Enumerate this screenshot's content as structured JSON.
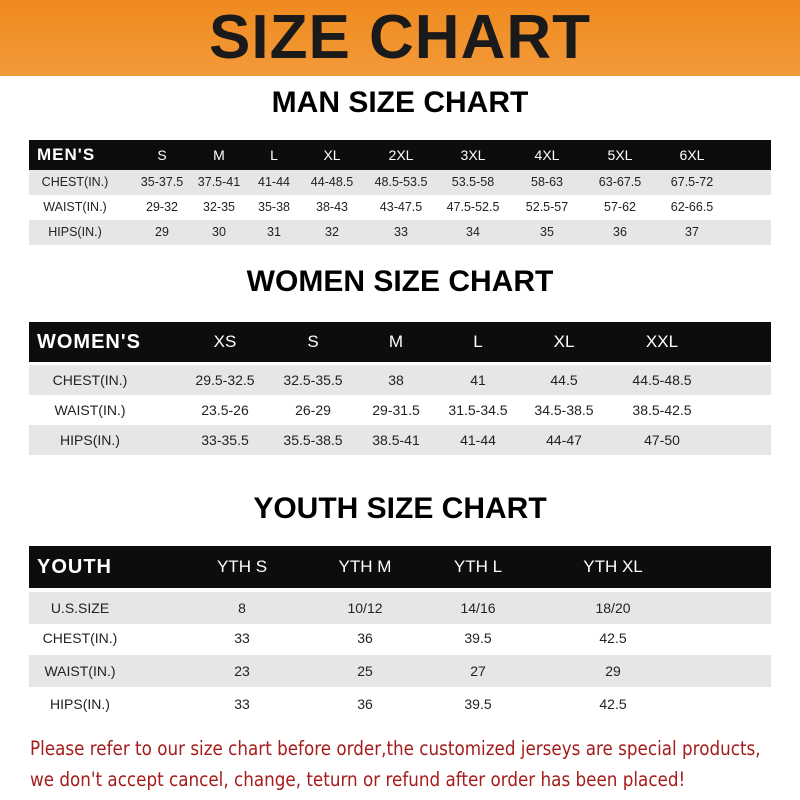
{
  "banner_title": "SIZE CHART",
  "tables": [
    {
      "id": "men",
      "title": "MAN SIZE CHART",
      "header": [
        "MEN'S",
        "S",
        "M",
        "L",
        "XL",
        "2XL",
        "3XL",
        "4XL",
        "5XL",
        "6XL"
      ],
      "rows": [
        [
          "CHEST(IN.)",
          "35-37.5",
          "37.5-41",
          "41-44",
          "44-48.5",
          "48.5-53.5",
          "53.5-58",
          "58-63",
          "63-67.5",
          "67.5-72"
        ],
        [
          "WAIST(IN.)",
          "29-32",
          "32-35",
          "35-38",
          "38-43",
          "43-47.5",
          "47.5-52.5",
          "52.5-57",
          "57-62",
          "62-66.5"
        ],
        [
          "HIPS(IN.)",
          "29",
          "30",
          "31",
          "32",
          "33",
          "34",
          "35",
          "36",
          "37"
        ]
      ]
    },
    {
      "id": "women",
      "title": "WOMEN SIZE CHART",
      "header": [
        "WOMEN'S",
        "XS",
        "S",
        "M",
        "L",
        "XL",
        "XXL"
      ],
      "rows": [
        [
          "CHEST(IN.)",
          "29.5-32.5",
          "32.5-35.5",
          "38",
          "41",
          "44.5",
          "44.5-48.5"
        ],
        [
          "WAIST(IN.)",
          "23.5-26",
          "26-29",
          "29-31.5",
          "31.5-34.5",
          "34.5-38.5",
          "38.5-42.5"
        ],
        [
          "HIPS(IN.)",
          "33-35.5",
          "35.5-38.5",
          "38.5-41",
          "41-44",
          "44-47",
          "47-50"
        ]
      ]
    },
    {
      "id": "youth",
      "title": "YOUTH SIZE CHART",
      "header": [
        "YOUTH",
        "YTH S",
        "YTH M",
        "YTH L",
        "YTH XL"
      ],
      "rows": [
        [
          "U.S.SIZE",
          "8",
          "10/12",
          "14/16",
          "18/20"
        ],
        [
          "CHEST(IN.)",
          "33",
          "36",
          "39.5",
          "42.5"
        ],
        [
          "WAIST(IN.)",
          "23",
          "25",
          "27",
          "29"
        ],
        [
          "HIPS(IN.)",
          "33",
          "36",
          "39.5",
          "42.5"
        ]
      ]
    }
  ],
  "note_line1": "Please refer to our size chart before order,the customized jerseys are special products,",
  "note_line2": "we don't accept cancel, change, teturn or refund after order has been placed!"
}
